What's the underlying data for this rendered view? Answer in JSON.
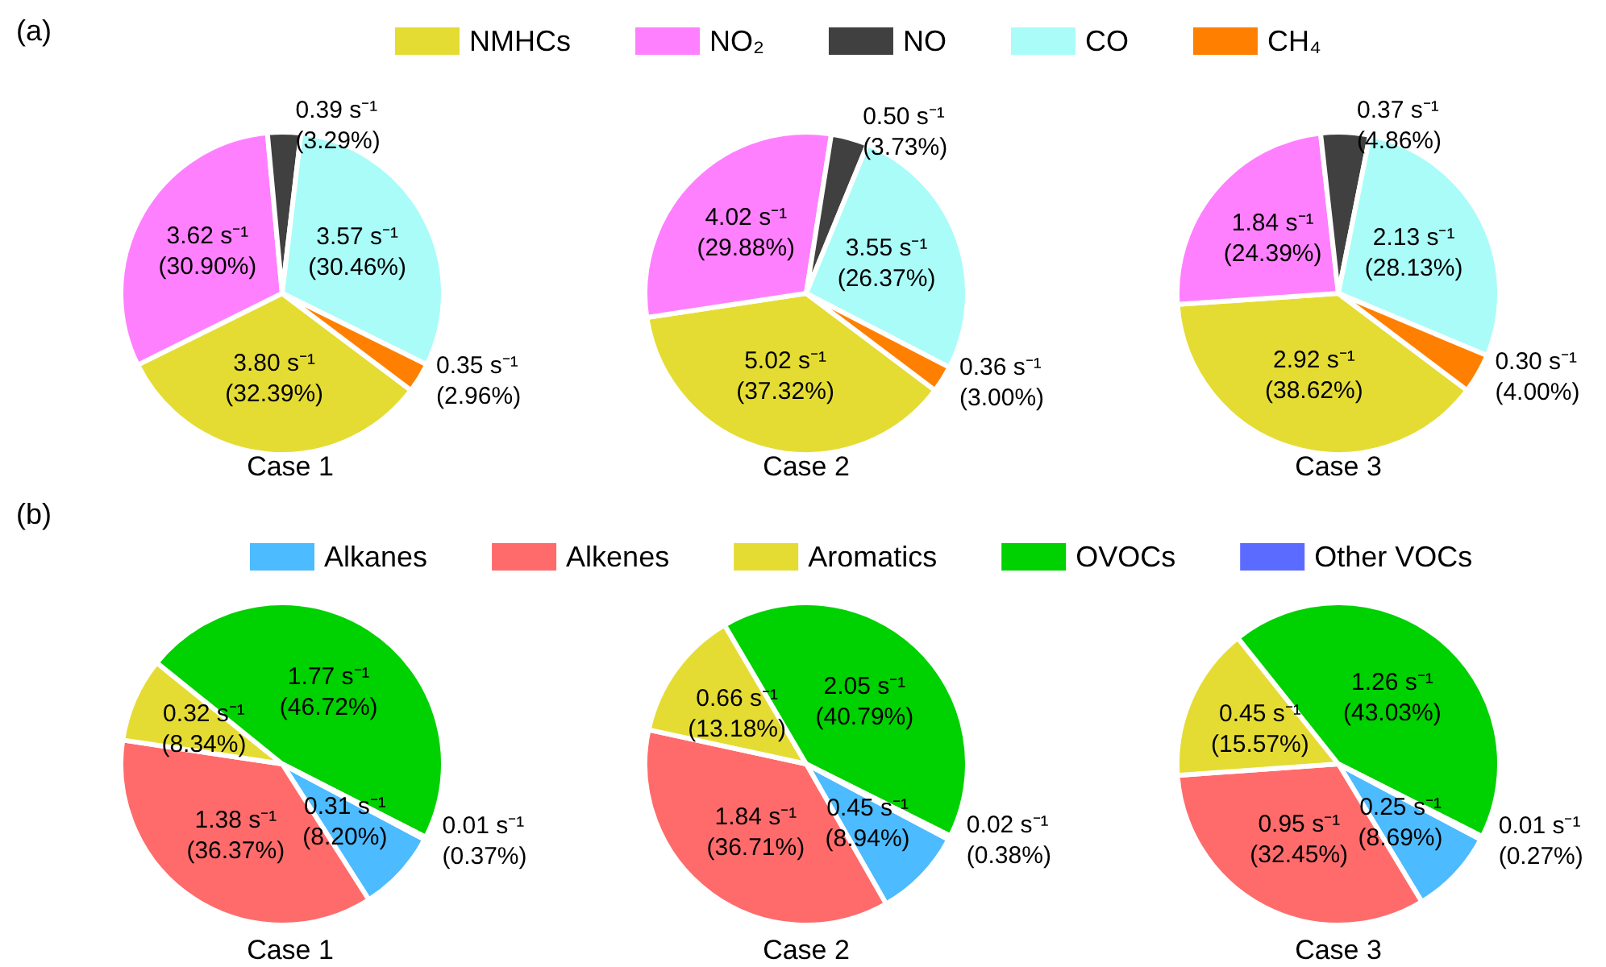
{
  "chart_data": [
    {
      "type": "pie",
      "title": "Case 1",
      "annotations": [
        "(a)"
      ],
      "legend": "top",
      "categories": [
        "NMHCs",
        "NO₂",
        "NO",
        "CO",
        "CH₄"
      ],
      "values": [
        3.8,
        3.62,
        0.39,
        3.57,
        0.35
      ],
      "colors": [
        "#e5dc33",
        "#ff80ff",
        "#404040",
        "#aafcf8",
        "#ff8000"
      ],
      "value_labels": [
        "3.80 s⁻¹\n(32.39%)",
        "3.62 s⁻¹\n(30.90%)",
        "0.39 s⁻¹\n(3.29%)",
        "3.57 s⁻¹\n(30.46%)",
        "0.35 s⁻¹\n(2.96%)"
      ]
    },
    {
      "type": "pie",
      "title": "Case 2",
      "categories": [
        null,
        null,
        null,
        null,
        null
      ],
      "values": [
        5.02,
        4.02,
        0.5,
        3.55,
        0.36
      ],
      "colors": [
        "#e5dc33",
        "#ff80ff",
        "#404040",
        "#aafcf8",
        "#ff8000"
      ],
      "value_labels": [
        "5.02 s⁻¹\n(37.32%)",
        "4.02 s⁻¹\n(29.88%)",
        "0.50 s⁻¹\n(3.73%)",
        "3.55 s⁻¹\n(26.37%)",
        "0.36 s⁻¹\n(3.00%)"
      ]
    },
    {
      "type": "pie",
      "title": "Case 3",
      "categories": [
        null,
        null,
        null,
        null,
        null
      ],
      "values": [
        2.92,
        1.84,
        0.37,
        2.13,
        0.3
      ],
      "colors": [
        "#e5dc33",
        "#ff80ff",
        "#404040",
        "#aafcf8",
        "#ff8000"
      ],
      "value_labels": [
        "2.92 s⁻¹\n(38.62%)",
        "1.84 s⁻¹\n(24.39%)",
        "0.37 s⁻¹\n(4.86%)",
        "2.13 s⁻¹\n(28.13%)",
        "0.30 s⁻¹\n(4.00%)"
      ]
    },
    {
      "type": "pie",
      "title": "Case 1",
      "annotations": [
        "(b)"
      ],
      "legend": "top",
      "categories": [
        "Alkanes",
        "Alkenes",
        "Aromatics",
        "OVOCs",
        "Other VOCs"
      ],
      "values": [
        0.31,
        1.38,
        0.32,
        1.77,
        0.01
      ],
      "colors": [
        "#4dbbff",
        "#ff6b6b",
        "#e5dc33",
        "#00d100",
        "#5c6bff"
      ],
      "value_labels": [
        "0.31 s⁻¹\n(8.20%)",
        "1.38 s⁻¹\n(36.37%)",
        "0.32 s⁻¹\n(8.34%)",
        "1.77 s⁻¹\n(46.72%)",
        "0.01 s⁻¹\n(0.37%)"
      ]
    },
    {
      "type": "pie",
      "title": "Case 2",
      "categories": [
        null,
        null,
        null,
        null,
        null
      ],
      "values": [
        0.45,
        1.84,
        0.66,
        2.05,
        0.02
      ],
      "colors": [
        "#4dbbff",
        "#ff6b6b",
        "#e5dc33",
        "#00d100",
        "#5c6bff"
      ],
      "value_labels": [
        "0.45 s⁻¹\n(8.94%)",
        "1.84 s⁻¹\n(36.71%)",
        "0.66 s⁻¹\n(13.18%)",
        "2.05 s⁻¹\n(40.79%)",
        "0.02 s⁻¹\n(0.38%)"
      ]
    },
    {
      "type": "pie",
      "title": "Case 3",
      "categories": [
        null,
        null,
        null,
        null,
        null
      ],
      "values": [
        0.25,
        0.95,
        0.45,
        1.26,
        0.01
      ],
      "colors": [
        "#4dbbff",
        "#ff6b6b",
        "#e5dc33",
        "#00d100",
        "#5c6bff"
      ],
      "value_labels": [
        "0.25 s⁻¹\n(8.69%)",
        "0.95 s⁻¹\n(32.45%)",
        "0.45 s⁻¹\n(15.57%)",
        "1.26 s⁻¹\n(43.03%)",
        "0.01 s⁻¹\n(0.27%)"
      ]
    }
  ]
}
